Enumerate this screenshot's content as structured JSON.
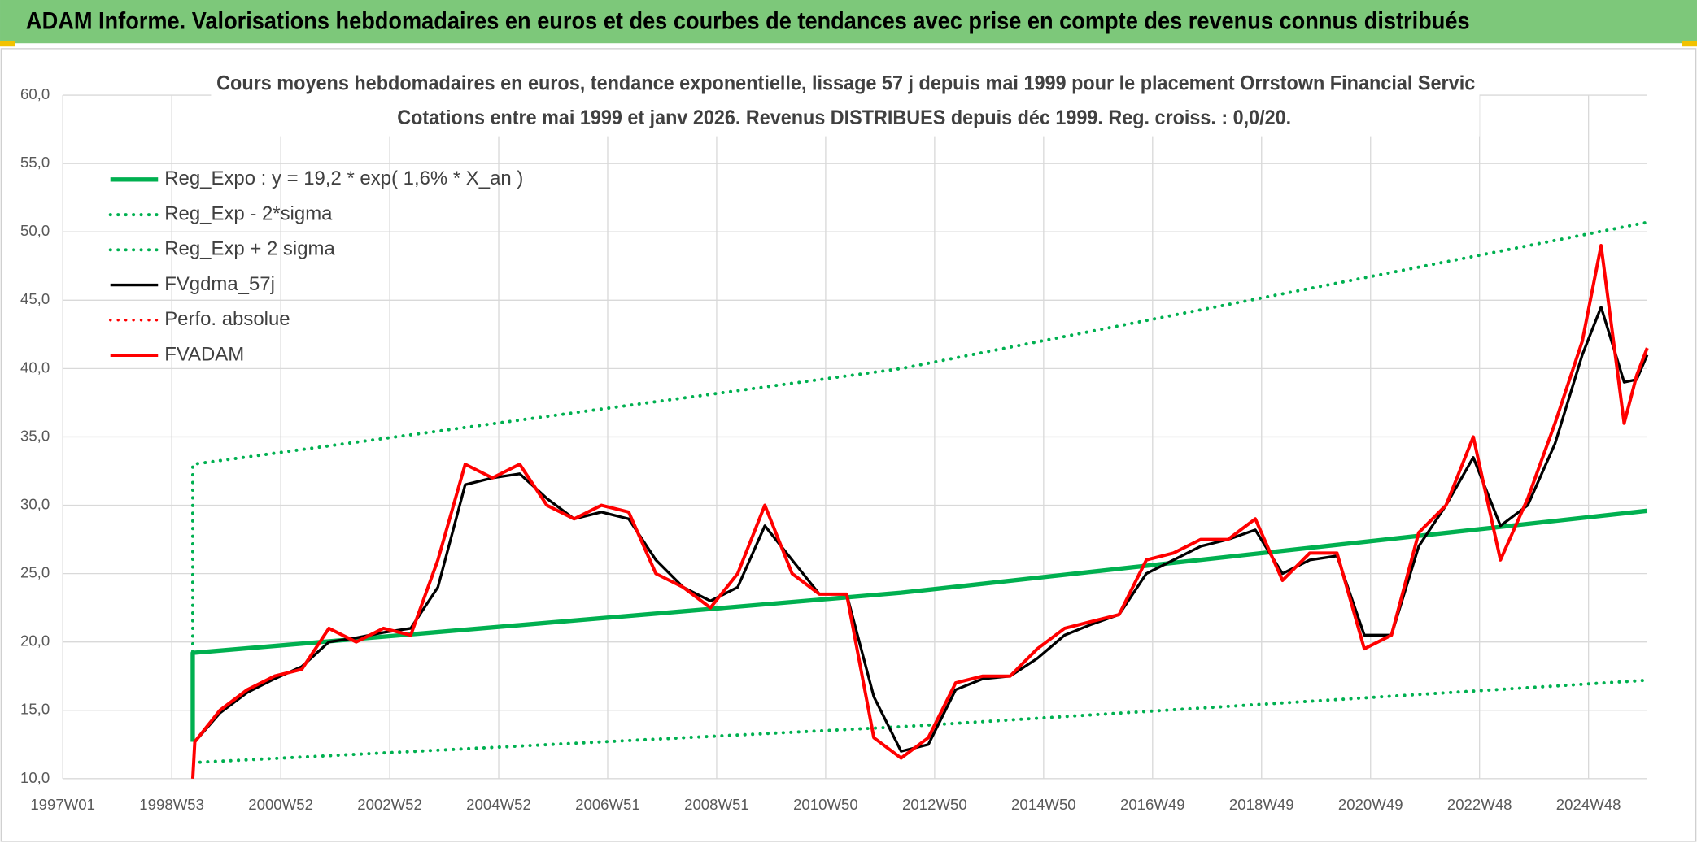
{
  "header": {
    "title": "ADAM Informe. Valorisations hebdomadaires en euros et des courbes de tendances avec prise en compte des revenus connus distribués"
  },
  "chart_data": {
    "type": "line",
    "title": "Cours moyens hebdomadaires en euros, tendance exponentielle, lissage 57 j depuis mai 1999 pour le placement Orrstown Financial Servic",
    "subtitle": "Cotations entre mai 1999 et janv 2026. Revenus DISTRIBUES depuis déc 1999. Reg. croiss. : 0,0/20.",
    "grid": true,
    "legend": "top-left",
    "xlim": [
      0,
      1512
    ],
    "xticks": [
      {
        "value": 0,
        "label": "1997W01"
      },
      {
        "value": 104,
        "label": "1998W53"
      },
      {
        "value": 208,
        "label": "2000W52"
      },
      {
        "value": 312,
        "label": "2002W52"
      },
      {
        "value": 416,
        "label": "2004W52"
      },
      {
        "value": 520,
        "label": "2006W51"
      },
      {
        "value": 624,
        "label": "2008W51"
      },
      {
        "value": 728,
        "label": "2010W50"
      },
      {
        "value": 832,
        "label": "2012W50"
      },
      {
        "value": 936,
        "label": "2014W50"
      },
      {
        "value": 1040,
        "label": "2016W49"
      },
      {
        "value": 1144,
        "label": "2018W49"
      },
      {
        "value": 1248,
        "label": "2020W49"
      },
      {
        "value": 1352,
        "label": "2022W48"
      },
      {
        "value": 1456,
        "label": "2024W48"
      }
    ],
    "ylim": [
      10,
      60
    ],
    "yticks": [
      {
        "value": 10,
        "label": "10,0"
      },
      {
        "value": 15,
        "label": "15,0"
      },
      {
        "value": 20,
        "label": "20,0"
      },
      {
        "value": 25,
        "label": "25,0"
      },
      {
        "value": 30,
        "label": "30,0"
      },
      {
        "value": 35,
        "label": "35,0"
      },
      {
        "value": 40,
        "label": "40,0"
      },
      {
        "value": 45,
        "label": "45,0"
      },
      {
        "value": 50,
        "label": "50,0"
      },
      {
        "value": 55,
        "label": "55,0"
      },
      {
        "value": 60,
        "label": "60,0"
      }
    ],
    "x": [
      124,
      126,
      150,
      176,
      202,
      228,
      254,
      280,
      306,
      332,
      358,
      384,
      410,
      436,
      462,
      488,
      514,
      540,
      566,
      592,
      618,
      644,
      670,
      696,
      722,
      748,
      774,
      800,
      826,
      852,
      878,
      904,
      930,
      956,
      982,
      1008,
      1034,
      1060,
      1086,
      1112,
      1138,
      1164,
      1190,
      1216,
      1242,
      1268,
      1294,
      1320,
      1346,
      1372,
      1398,
      1424,
      1450,
      1468,
      1490,
      1502,
      1512
    ],
    "series": [
      {
        "name": "Reg_Expo : y = 19,2 * exp( 1,6% *  X_an )",
        "color": "#00b050",
        "line_style": "solid",
        "width": 4,
        "x": [
          124,
          124,
          800,
          1512
        ],
        "values": [
          12.7,
          19.2,
          23.6,
          29.6
        ]
      },
      {
        "name": "Reg_Exp - 2*sigma",
        "color": "#00b050",
        "line_style": "dotted",
        "width": 3,
        "x": [
          131,
          800,
          1512
        ],
        "values": [
          11.2,
          13.8,
          17.2
        ]
      },
      {
        "name": "Reg_Exp + 2 sigma",
        "color": "#00b050",
        "line_style": "dotted",
        "width": 3,
        "x": [
          124,
          124,
          800,
          1512
        ],
        "values": [
          19.3,
          33,
          40,
          50.7
        ]
      },
      {
        "name": "FVgdma_57j",
        "color": "#000000",
        "line_style": "solid",
        "width": 2.5,
        "values": [
          null,
          12.7,
          14.8,
          16.3,
          17.3,
          18.2,
          20,
          20.3,
          20.7,
          21,
          24,
          31.5,
          32,
          32.3,
          30.5,
          29,
          29.5,
          29,
          26,
          24,
          23,
          24,
          28.5,
          26,
          23.5,
          23.5,
          16,
          12,
          12.5,
          16.5,
          17.3,
          17.5,
          18.8,
          20.5,
          21.3,
          22,
          25,
          26,
          27,
          27.5,
          28.2,
          25,
          26,
          26.3,
          20.5,
          20.5,
          27,
          30,
          33.5,
          28.5,
          30,
          34.5,
          41,
          44.5,
          39,
          39.2,
          41
        ]
      },
      {
        "name": "Perfo. absolue",
        "color": "#ff0000",
        "line_style": "dotted",
        "width": 2.5,
        "x": [],
        "values": []
      },
      {
        "name": "FVADAM",
        "color": "#ff0000",
        "line_style": "solid",
        "width": 3,
        "values": [
          10,
          12.7,
          15,
          16.5,
          17.5,
          18,
          21,
          20,
          21,
          20.5,
          26,
          33,
          32,
          33,
          30,
          29,
          30,
          29.5,
          25,
          24,
          22.5,
          25,
          30,
          25,
          23.5,
          23.5,
          13,
          11.5,
          13,
          17,
          17.5,
          17.5,
          19.5,
          21,
          21.5,
          22,
          26,
          26.5,
          27.5,
          27.5,
          29,
          24.5,
          26.5,
          26.5,
          19.5,
          20.5,
          28,
          30,
          35,
          26,
          30.5,
          36,
          42,
          49,
          36,
          39.5,
          41.5
        ]
      }
    ]
  }
}
